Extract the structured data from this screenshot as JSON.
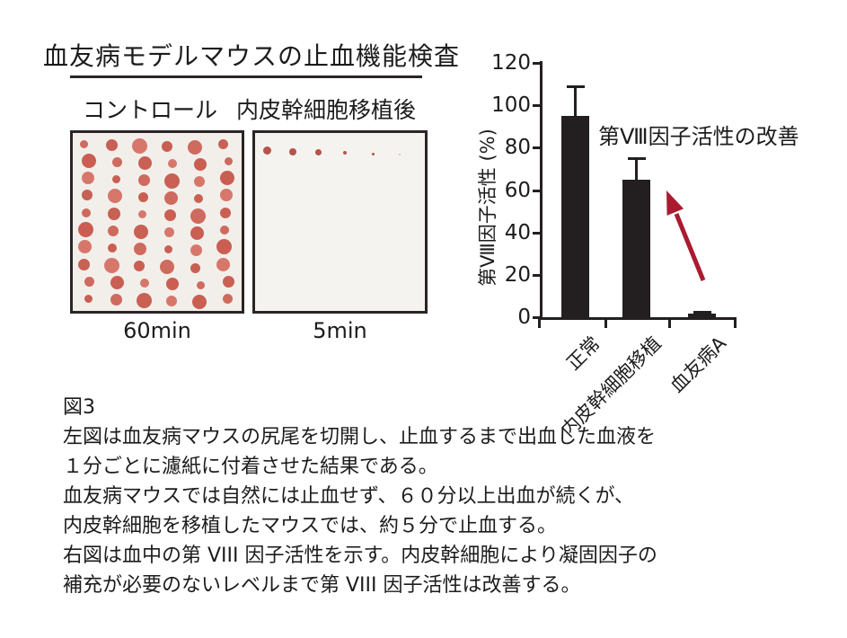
{
  "figure": {
    "title": "血友病モデルマウスの止血機能検査",
    "panels": {
      "control": {
        "label": "コントロール",
        "time_label": "60min"
      },
      "transplant": {
        "label": "内皮幹細胞移植後",
        "time_label": "5min"
      }
    }
  },
  "chart_data": {
    "type": "bar",
    "ylabel": "第Ⅷ因子活性 (%)",
    "annotation": "第Ⅷ因子活性の改善",
    "categories": [
      "正常",
      "内皮幹細胞移植",
      "血友病A"
    ],
    "values": [
      95,
      65,
      1.5
    ],
    "errors_plus": [
      14,
      10,
      1
    ],
    "ylim": [
      0,
      120
    ],
    "yticks": [
      0,
      20,
      40,
      60,
      80,
      100,
      120
    ],
    "grid": false,
    "legend_position": "none",
    "bar_color": "#231f20",
    "arrow_color": "#aa1b30"
  },
  "caption": {
    "lines": [
      "図3",
      "左図は血友病マウスの尻尾を切開し、止血するまで出血した血液を",
      "１分ごとに濾紙に付着させた結果である。",
      "血友病マウスでは自然には止血せず、６０分以上出血が続くが、",
      "内皮幹細胞を移植したマウスでは、約５分で止血する。",
      "右図は血中の第 VIII 因子活性を示す。内皮幹細胞により凝固因子の",
      "補充が必要のないレベルまで第 VIII 因子活性は改善する。"
    ]
  },
  "blood_spots": {
    "left_panel": {
      "rows": 10,
      "cols": 6,
      "palette": [
        "#cf6a5f",
        "#c86054",
        "#d7776c",
        "#ca5e52"
      ]
    },
    "right_panel": {
      "color": "#b4544a",
      "x": [
        13,
        42,
        70,
        100,
        131,
        161
      ],
      "y": [
        19,
        21,
        21,
        22,
        23,
        24
      ],
      "diameters": [
        9,
        8,
        7,
        4.5,
        3,
        2
      ],
      "opacities": [
        1,
        1,
        1,
        1,
        1,
        0.35
      ]
    }
  },
  "colors": {
    "text": "#1d1b1b",
    "axis": "#231f20",
    "underline": "#2b2326"
  }
}
